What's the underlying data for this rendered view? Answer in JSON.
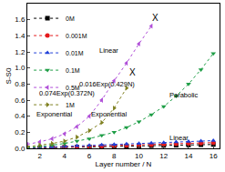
{
  "chart_data": {
    "type": "scatter",
    "x_label": "Layer number / N",
    "y_label": "S-S0",
    "xlim": [
      1,
      16.5
    ],
    "ylim": [
      0,
      1.8
    ],
    "xticks": [
      2,
      4,
      6,
      8,
      10,
      12,
      14,
      16
    ],
    "yticks": [
      {
        "value": 0,
        "label": "0.0"
      },
      {
        "value": 0.2,
        "label": "0.2"
      },
      {
        "value": 0.4,
        "label": "0.4"
      },
      {
        "value": 0.6,
        "label": "0.6"
      },
      {
        "value": 0.8,
        "label": "0.8"
      },
      {
        "value": 1.0,
        "label": "1.0"
      },
      {
        "value": 1.2,
        "label": "1.2"
      },
      {
        "value": 1.4,
        "label": "1.4"
      },
      {
        "value": 1.6,
        "label": "1.6"
      }
    ],
    "grid": false,
    "legend": "top-left",
    "line_style": "dot",
    "series": [
      {
        "name": "0M",
        "color": "#000000",
        "marker": "square",
        "x": [
          1,
          2,
          3,
          4,
          5,
          6,
          7,
          8,
          9,
          10,
          11,
          12,
          13,
          14,
          15,
          16
        ],
        "values": [
          0.003,
          0.006,
          0.009,
          0.012,
          0.015,
          0.018,
          0.021,
          0.024,
          0.027,
          0.03,
          0.033,
          0.036,
          0.039,
          0.042,
          0.045,
          0.048
        ]
      },
      {
        "name": "0.001M",
        "color": "#e41a1c",
        "marker": "circle",
        "x": [
          1,
          2,
          3,
          4,
          5,
          6,
          7,
          8,
          9,
          10,
          11,
          12,
          13,
          14,
          15,
          16
        ],
        "values": [
          0.004,
          0.008,
          0.012,
          0.016,
          0.02,
          0.024,
          0.028,
          0.032,
          0.036,
          0.041,
          0.046,
          0.051,
          0.056,
          0.061,
          0.066,
          0.071
        ]
      },
      {
        "name": "0.01M",
        "color": "#1f3fd8",
        "marker": "triangle-up",
        "x": [
          1,
          2,
          3,
          4,
          5,
          6,
          7,
          8,
          9,
          10,
          11,
          12,
          13,
          14,
          15,
          16
        ],
        "values": [
          0.006,
          0.012,
          0.018,
          0.024,
          0.03,
          0.036,
          0.042,
          0.048,
          0.054,
          0.06,
          0.066,
          0.072,
          0.078,
          0.084,
          0.09,
          0.096
        ]
      },
      {
        "name": "0.1M",
        "color": "#1e9e46",
        "marker": "triangle-down",
        "x": [
          1,
          2,
          3,
          4,
          5,
          6,
          7,
          8,
          9,
          10,
          11,
          12,
          13,
          14,
          15,
          16
        ],
        "values": [
          0.01,
          0.02,
          0.04,
          0.06,
          0.09,
          0.12,
          0.16,
          0.2,
          0.26,
          0.33,
          0.42,
          0.52,
          0.65,
          0.8,
          0.98,
          1.18
        ]
      },
      {
        "name": "0.5M",
        "color": "#b04fd8",
        "marker": "triangle-left",
        "x": [
          1,
          2,
          3,
          4,
          5,
          6,
          7,
          8,
          9,
          10,
          11
        ],
        "values": [
          0.05,
          0.08,
          0.12,
          0.18,
          0.27,
          0.4,
          0.6,
          0.84,
          1.06,
          1.3,
          1.52
        ]
      },
      {
        "name": "1M",
        "color": "#7f8020",
        "marker": "triangle-right",
        "x": [
          1,
          2,
          3,
          4,
          5,
          6,
          7,
          8,
          9
        ],
        "values": [
          0.02,
          0.04,
          0.06,
          0.09,
          0.14,
          0.22,
          0.32,
          0.5,
          0.75
        ]
      }
    ],
    "annotations": [
      {
        "text": "X",
        "x": 11.3,
        "y": 1.62
      },
      {
        "text": "X",
        "x": 9.5,
        "y": 0.95
      },
      {
        "text": "Linear",
        "x": 7.6,
        "y": 1.22
      },
      {
        "text": "0.074Exp(0.372N)",
        "x": 4.2,
        "y": 0.68
      },
      {
        "text": "0.016Exp(0.429N)",
        "x": 7.4,
        "y": 0.8
      },
      {
        "text": "Exponential",
        "x": 3.2,
        "y": 0.42
      },
      {
        "text": "Exponential",
        "x": 7.6,
        "y": 0.42
      },
      {
        "text": "Parabolic",
        "x": 13.6,
        "y": 0.66
      },
      {
        "text": "Linear",
        "x": 13.2,
        "y": 0.13
      }
    ]
  }
}
